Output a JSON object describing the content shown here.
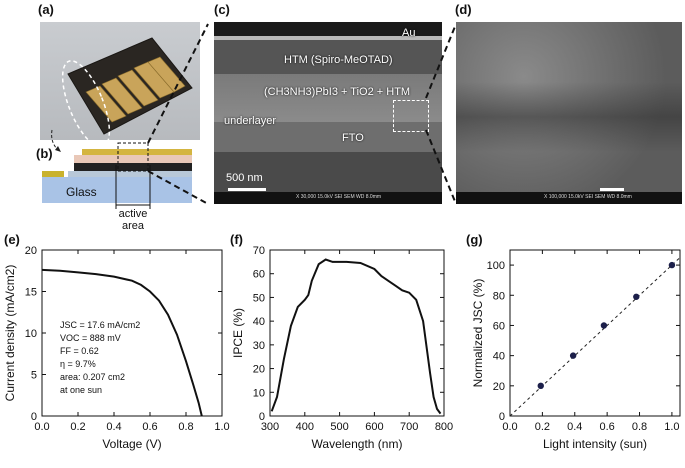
{
  "panels": {
    "a": {
      "label": "(a)"
    },
    "b": {
      "label": "(b)",
      "glass": "Glass",
      "active_area": "active area"
    },
    "c": {
      "label": "(c)",
      "layers": {
        "au": "Au",
        "htm": "HTM (Spiro-MeOTAD)",
        "absorber": "(CH3NH3)PbI3 + TiO2 + HTM",
        "underlayer": "underlayer",
        "fto": "FTO"
      },
      "scale_bar": "500 nm",
      "footer": "X 30,000   15.0kV SEI   SEM   WD 8.0mm"
    },
    "d": {
      "label": "(d)",
      "footer": "X 100,000   15.0kV SEI   SEM   WD 8.0mm"
    },
    "e": {
      "label": "(e)"
    },
    "f": {
      "label": "(f)"
    },
    "g": {
      "label": "(g)"
    }
  },
  "chart_data": [
    {
      "panel": "e",
      "type": "line",
      "xlabel": "Voltage (V)",
      "ylabel": "Current density (mA/cm2)",
      "xlim": [
        0.0,
        1.0
      ],
      "ylim": [
        0,
        20
      ],
      "xticks": [
        0.0,
        0.2,
        0.4,
        0.6,
        0.8,
        1.0
      ],
      "yticks": [
        0,
        5,
        10,
        15,
        20
      ],
      "x": [
        0.0,
        0.1,
        0.2,
        0.3,
        0.4,
        0.5,
        0.55,
        0.6,
        0.65,
        0.7,
        0.75,
        0.8,
        0.84,
        0.87,
        0.888
      ],
      "y": [
        17.6,
        17.5,
        17.3,
        17.1,
        16.8,
        16.3,
        15.8,
        15.0,
        13.9,
        12.2,
        9.8,
        6.6,
        3.8,
        1.6,
        0.0
      ],
      "annotations": [
        "JSC = 17.6 mA/cm2",
        "VOC = 888 mV",
        "FF = 0.62",
        "η = 9.7%",
        "area: 0.207 cm2",
        "at one sun"
      ]
    },
    {
      "panel": "f",
      "type": "line",
      "xlabel": "Wavelength (nm)",
      "ylabel": "IPCE (%)",
      "xlim": [
        300,
        800
      ],
      "ylim": [
        0,
        70
      ],
      "xticks": [
        300,
        400,
        500,
        600,
        700,
        800
      ],
      "yticks": [
        0,
        10,
        20,
        30,
        40,
        50,
        60,
        70
      ],
      "x": [
        305,
        320,
        340,
        360,
        380,
        400,
        410,
        420,
        440,
        460,
        480,
        500,
        520,
        560,
        600,
        620,
        640,
        660,
        680,
        700,
        720,
        740,
        760,
        770,
        780,
        790
      ],
      "y": [
        2,
        8,
        24,
        38,
        46,
        49,
        51,
        57,
        64,
        66,
        65,
        65,
        65,
        64.5,
        62,
        59,
        57,
        55,
        53,
        52,
        49,
        40,
        18,
        8,
        3,
        1
      ]
    },
    {
      "panel": "g",
      "type": "scatter",
      "xlabel": "Light intensity (sun)",
      "ylabel": "Normalized JSC (%)",
      "xlim": [
        0.0,
        1.05
      ],
      "ylim": [
        0,
        110
      ],
      "xticks": [
        0.0,
        0.2,
        0.4,
        0.6,
        0.8,
        1.0
      ],
      "yticks": [
        0,
        20,
        40,
        60,
        80,
        100
      ],
      "x": [
        0.19,
        0.39,
        0.58,
        0.78,
        1.0
      ],
      "y": [
        20,
        40,
        60,
        79,
        100
      ],
      "fit_line": {
        "x": [
          0.0,
          1.05
        ],
        "y": [
          0,
          105
        ]
      }
    }
  ]
}
